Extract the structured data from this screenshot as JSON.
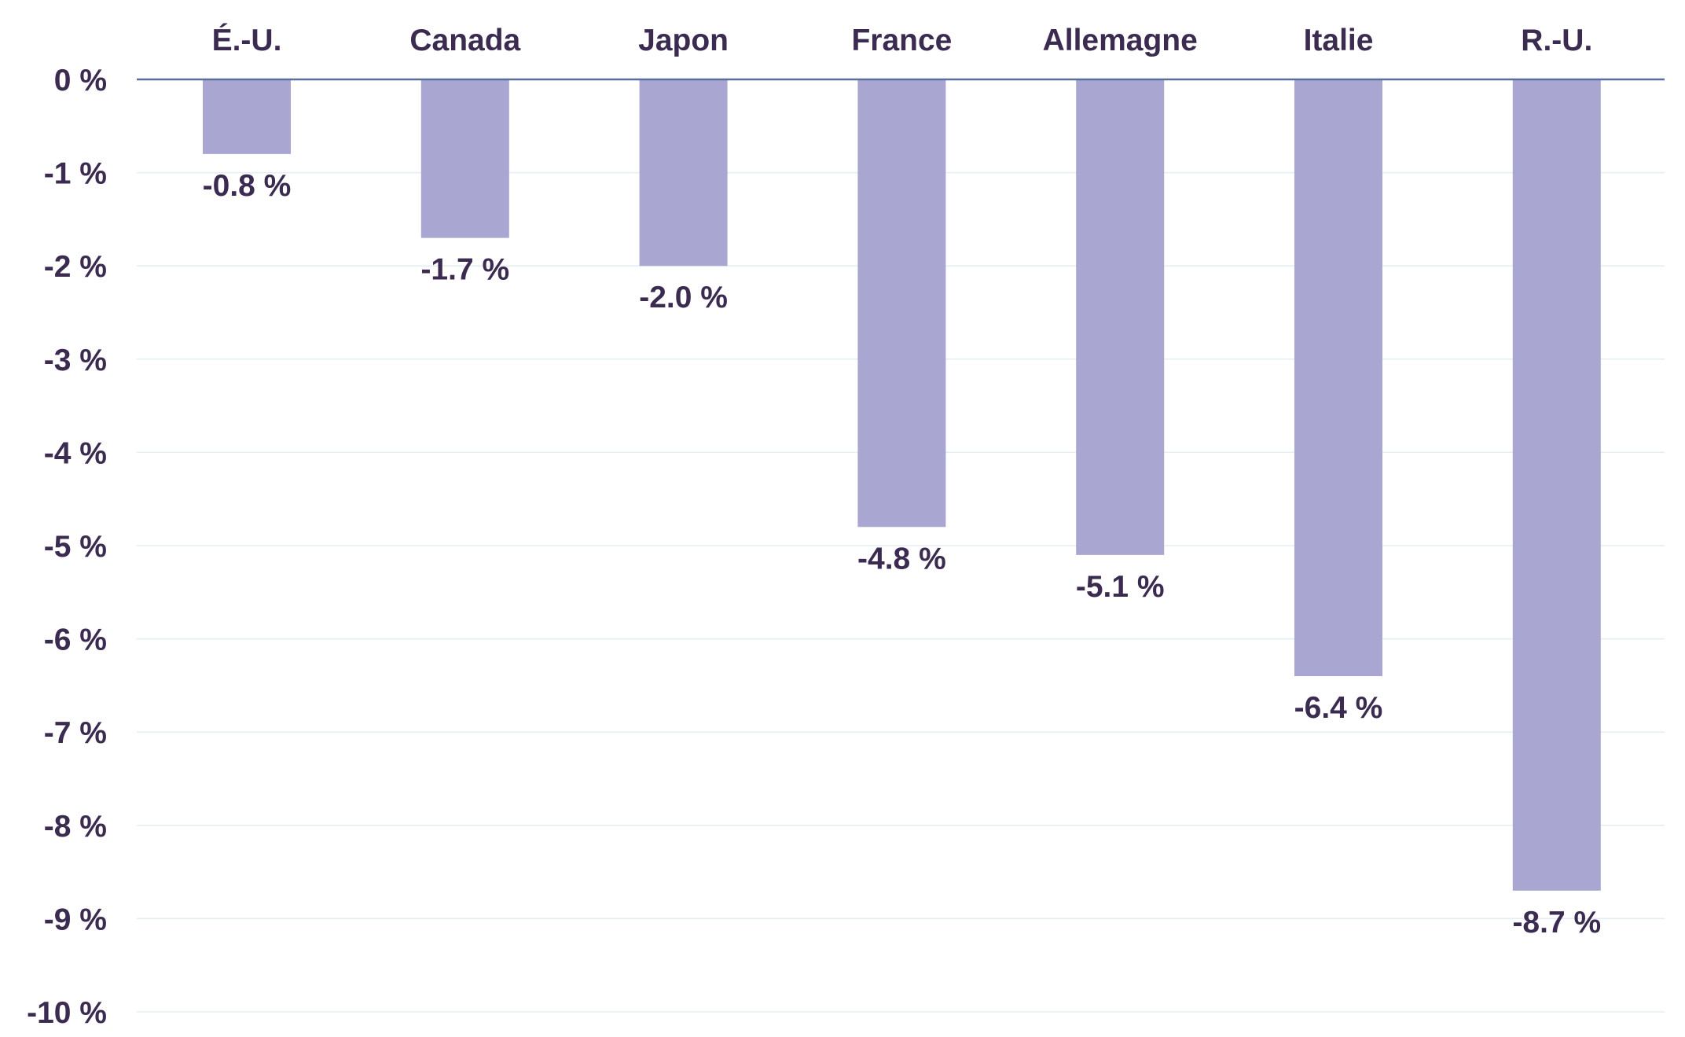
{
  "chart_data": {
    "type": "bar",
    "title": "",
    "xlabel": "",
    "ylabel": "",
    "categories": [
      "É.-U.",
      "Canada",
      "Japon",
      "France",
      "Allemagne",
      "Italie",
      "R.-U."
    ],
    "values": [
      -0.8,
      -1.7,
      -2.0,
      -4.8,
      -5.1,
      -6.4,
      -8.7
    ],
    "data_labels": [
      "-0.8 %",
      "-1.7 %",
      "-2.0 %",
      "-4.8 %",
      "-5.1 %",
      "-6.4 %",
      "-8.7 %"
    ],
    "y_ticks": [
      0,
      -1,
      -2,
      -3,
      -4,
      -5,
      -6,
      -7,
      -8,
      -9,
      -10
    ],
    "y_tick_labels": [
      "0 %",
      "-1 %",
      "-2 %",
      "-3 %",
      "-4 %",
      "-5 %",
      "-6 %",
      "-7 %",
      "-8 %",
      "-9 %",
      "-10 %"
    ],
    "ylim": [
      -10,
      0
    ],
    "category_axis_position": "top",
    "grid": true,
    "legend": "none",
    "colors": {
      "bar": "#a9a6d1",
      "text": "#3b2b50",
      "zero_line": "#5a6f9a",
      "grid": "#e3edf2"
    }
  }
}
